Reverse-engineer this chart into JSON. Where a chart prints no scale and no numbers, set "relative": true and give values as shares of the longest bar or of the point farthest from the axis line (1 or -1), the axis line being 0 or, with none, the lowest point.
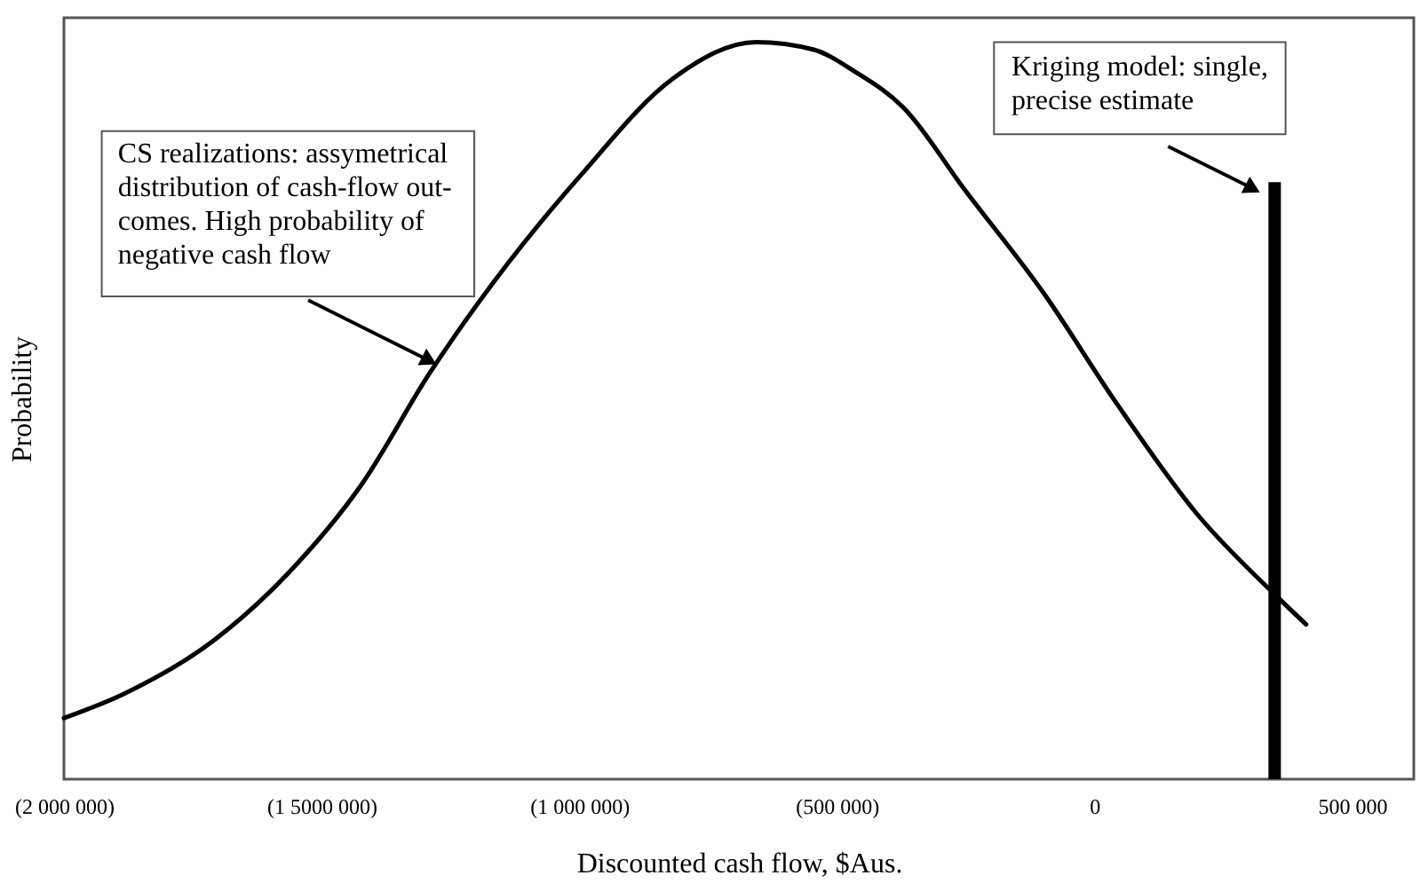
{
  "chart_data": {
    "type": "line",
    "relative": true,
    "xlabel": "Discounted cash flow, $Aus.",
    "ylabel": "Probability",
    "xlim": [
      -2000000,
      620000
    ],
    "xticks": [
      {
        "value": -2000000,
        "label": "(2 000 000)"
      },
      {
        "value": -1500000,
        "label": "(1 5000 000)"
      },
      {
        "value": -1000000,
        "label": "(1 000 000)"
      },
      {
        "value": -500000,
        "label": "(500 000)"
      },
      0,
      {
        "value": 500000,
        "label": "500 000"
      }
    ],
    "series": [
      {
        "color": "#000000",
        "x": [
          -2000000,
          -1883000,
          -1706000,
          -1564000,
          -1422000,
          -1291000,
          -1138000,
          -996000,
          -819000,
          -656000,
          -546000,
          -465000,
          -369000,
          -252000,
          -99000,
          43000,
          199000,
          351000,
          411000
        ],
        "values": [
          0.083,
          0.116,
          0.19,
          0.28,
          0.4,
          0.55,
          0.7,
          0.82,
          0.95,
          1,
          0.99,
          0.96,
          0.91,
          0.8,
          0.66,
          0.51,
          0.36,
          0.25,
          0.21
        ]
      },
      {
        "type": "bar",
        "color": "#000000",
        "x": [
          350000
        ],
        "values": [
          0.81
        ]
      }
    ],
    "annotations": [
      "CS realizations: assymetrical distribution of cash-flow out-comes. High probability of negative cash flow",
      "Kriging model: single, precise estimate"
    ],
    "grid": false
  }
}
